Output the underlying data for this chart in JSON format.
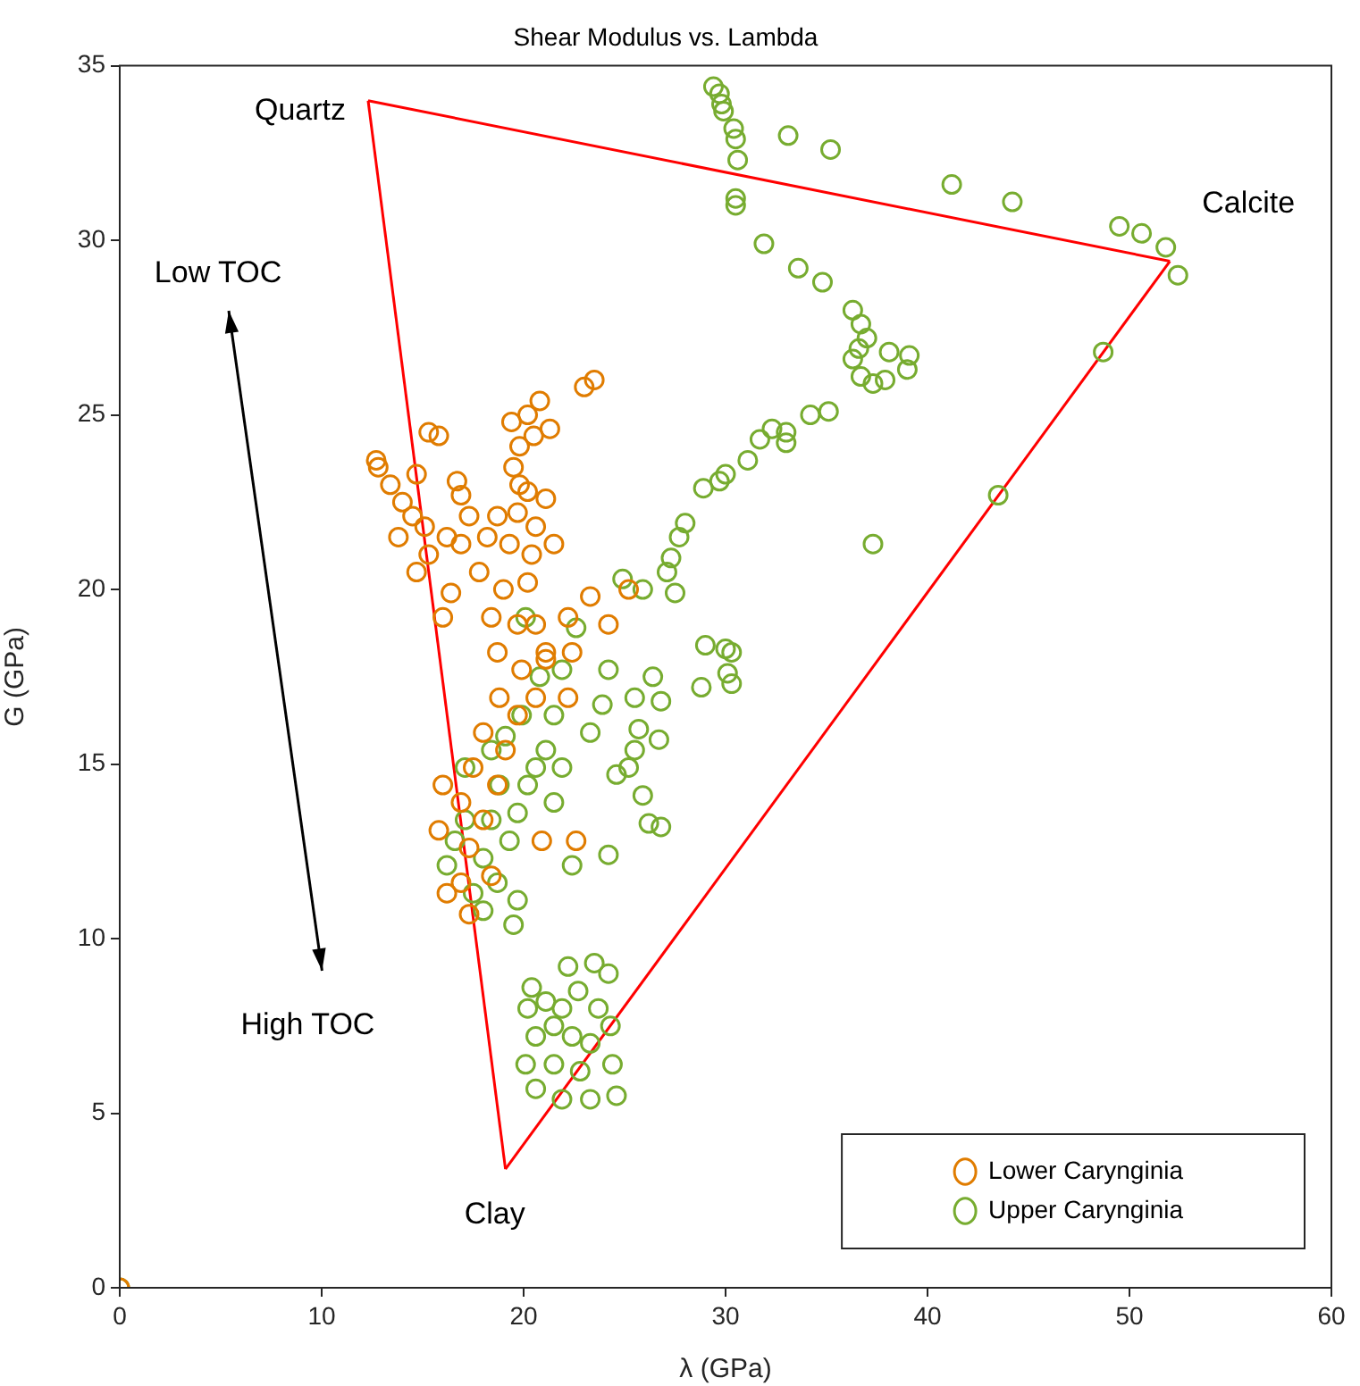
{
  "chart_data": {
    "type": "scatter",
    "title": "Shear Modulus vs. Lambda",
    "xlabel": "λ (GPa)",
    "ylabel": "G (GPa)",
    "xlim": [
      0,
      60
    ],
    "xticks": [
      0,
      10,
      20,
      30,
      40,
      50,
      60
    ],
    "ylim": [
      0,
      35
    ],
    "yticks": [
      0,
      5,
      10,
      15,
      20,
      25,
      30,
      35
    ],
    "grid": false,
    "legend": "bottom right",
    "marker": "circle",
    "annotations": [
      {
        "text": "Quartz",
        "x": 12.3,
        "y": 34.0
      },
      {
        "text": "Calcite",
        "x": 52.0,
        "y": 29.4
      },
      {
        "text": "Clay",
        "x": 19.1,
        "y": 3.4
      },
      "Low TOC",
      "High TOC"
    ],
    "series": [
      {
        "name": "Lower Carynginia",
        "color": "#e07c00",
        "x": [
          0,
          12.7,
          12.8,
          15.3,
          15.8,
          14.7,
          13.4,
          14.0,
          14.5,
          15.1,
          13.8,
          15.3,
          14.7,
          16.0,
          16.4,
          23.5,
          23.0,
          20.8,
          20.2,
          21.3,
          19.4,
          19.8,
          19.5,
          19.8,
          20.5,
          16.7,
          16.9,
          23.3,
          25.2,
          24.2,
          22.2,
          22.4,
          21.1,
          22.2,
          22.6,
          20.9,
          16.0,
          15.8,
          16.2,
          17.3,
          18.7,
          19.7,
          20.6,
          18.2,
          19.3,
          20.4,
          21.5,
          17.8,
          19.0,
          20.2,
          18.4,
          19.7,
          18.7,
          19.9,
          18.8,
          19.7,
          18.0,
          19.1,
          17.5,
          18.7,
          16.9,
          18.0,
          17.3,
          18.4,
          16.9,
          20.6,
          21.1,
          20.6,
          16.9,
          17.3,
          16.2,
          21.1,
          20.2
        ],
        "values": [
          0,
          23.7,
          23.5,
          24.5,
          24.4,
          23.3,
          23.0,
          22.5,
          22.1,
          21.8,
          21.5,
          21.0,
          20.5,
          19.2,
          19.9,
          26.0,
          25.8,
          25.4,
          25.0,
          24.6,
          24.8,
          24.1,
          23.5,
          23.0,
          24.4,
          23.1,
          22.7,
          19.8,
          20.0,
          19.0,
          19.2,
          18.2,
          18.0,
          16.9,
          12.8,
          12.8,
          14.4,
          13.1,
          11.3,
          10.7,
          22.1,
          22.2,
          21.8,
          21.5,
          21.3,
          21.0,
          21.3,
          20.5,
          20.0,
          20.2,
          19.2,
          19.0,
          18.2,
          17.7,
          16.9,
          16.4,
          15.9,
          15.4,
          14.9,
          14.4,
          13.9,
          13.4,
          12.6,
          11.8,
          11.6,
          19.0,
          18.2,
          16.9,
          21.3,
          22.1,
          21.5,
          22.6,
          22.8
        ]
      },
      {
        "name": "Upper Carynginia",
        "color": "#77ac30",
        "x": [
          0,
          29.4,
          29.7,
          29.8,
          29.9,
          30.4,
          30.5,
          30.6,
          30.5,
          30.5,
          33.1,
          35.2,
          41.2,
          44.2,
          49.5,
          50.6,
          51.8,
          52.4,
          48.7,
          43.5,
          37.3,
          31.9,
          33.6,
          34.8,
          36.3,
          36.7,
          36.6,
          37.0,
          36.3,
          36.7,
          38.1,
          39.1,
          39.0,
          37.9,
          37.3,
          35.1,
          34.2,
          33.0,
          32.3,
          33.0,
          31.7,
          31.1,
          30.0,
          29.7,
          28.9,
          28.0,
          27.7,
          27.3,
          27.1,
          27.5,
          29.0,
          30.0,
          30.3,
          30.1,
          30.3,
          28.8,
          26.4,
          26.8,
          26.7,
          25.5,
          25.7,
          25.5,
          25.9,
          26.2,
          26.8,
          24.2,
          23.9,
          24.6,
          24.2,
          25.2,
          24.9,
          25.9,
          22.6,
          21.9,
          20.8,
          21.5,
          23.3,
          21.9,
          21.5,
          22.4,
          19.7,
          19.5,
          20.1,
          19.9,
          16.2,
          16.6,
          17.1,
          17.5,
          18.0,
          18.4,
          18.8,
          19.3,
          19.7,
          20.2,
          20.6,
          21.1,
          18.0,
          18.7,
          17.1,
          18.4,
          19.1,
          20.4,
          20.2,
          20.1,
          20.6,
          21.9,
          23.3,
          24.6,
          24.4,
          24.3,
          24.2,
          23.5,
          22.2,
          22.7,
          21.1,
          21.5,
          22.4,
          23.3,
          21.5,
          22.8,
          20.6,
          23.7,
          21.9
        ],
        "values": [
          0,
          34.4,
          34.2,
          33.9,
          33.7,
          33.2,
          32.9,
          32.3,
          31.2,
          31.0,
          33.0,
          32.6,
          31.6,
          31.1,
          30.4,
          30.2,
          29.8,
          29.0,
          26.8,
          22.7,
          21.3,
          29.9,
          29.2,
          28.8,
          28.0,
          27.6,
          26.9,
          27.2,
          26.6,
          26.1,
          26.8,
          26.7,
          26.3,
          26.0,
          25.9,
          25.1,
          25.0,
          24.5,
          24.6,
          24.2,
          24.3,
          23.7,
          23.3,
          23.1,
          22.9,
          21.9,
          21.5,
          20.9,
          20.5,
          19.9,
          18.4,
          18.3,
          18.2,
          17.6,
          17.3,
          17.2,
          17.5,
          16.8,
          15.7,
          16.9,
          16.0,
          15.4,
          14.1,
          13.3,
          13.2,
          17.7,
          16.7,
          14.7,
          12.4,
          14.9,
          20.3,
          20.0,
          18.9,
          17.7,
          17.5,
          16.4,
          15.9,
          14.9,
          13.9,
          12.1,
          11.1,
          10.4,
          19.2,
          16.4,
          12.1,
          12.8,
          13.4,
          11.3,
          12.3,
          13.4,
          14.4,
          12.8,
          13.6,
          14.4,
          14.9,
          15.4,
          10.8,
          11.6,
          14.9,
          15.4,
          15.8,
          8.6,
          8.0,
          6.4,
          5.7,
          5.4,
          5.4,
          5.5,
          6.4,
          7.5,
          9.0,
          9.3,
          9.2,
          8.5,
          8.2,
          7.5,
          7.2,
          7.0,
          6.4,
          6.2,
          7.2,
          8.0,
          8.0
        ]
      },
      {
        "type": "line",
        "color": "#ff0000",
        "marker": "none",
        "x": [
          12.3,
          52.0
        ],
        "values": [
          34.0,
          29.4
        ]
      },
      {
        "type": "line",
        "color": "#ff0000",
        "marker": "none",
        "x": [
          19.1,
          52.0
        ],
        "values": [
          3.4,
          29.4
        ]
      },
      {
        "type": "line",
        "color": "#ff0000",
        "marker": "none",
        "x": [
          12.3,
          19.1
        ],
        "values": [
          34.0,
          3.4
        ]
      }
    ]
  }
}
